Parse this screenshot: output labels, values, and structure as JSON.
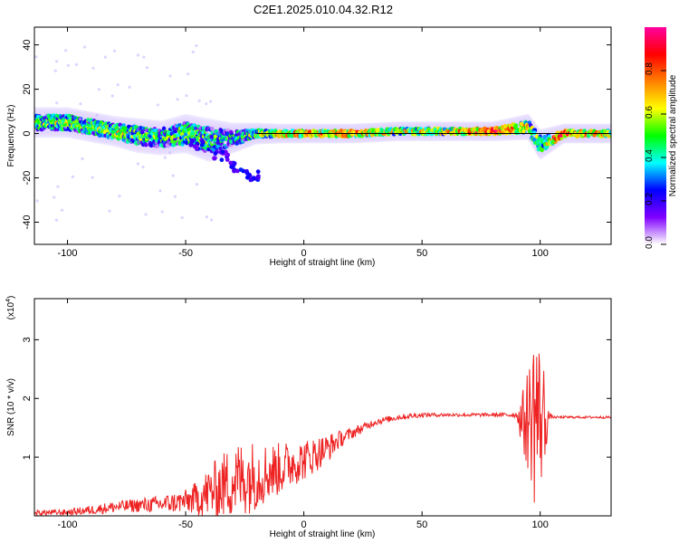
{
  "title": "C2E1.2025.010.04.32.R12",
  "chart_data": [
    {
      "type": "heatmap",
      "xlabel": "Height of straight line (km)",
      "ylabel": "Frequency (Hz)",
      "xlim": [
        -114,
        130
      ],
      "ylim": [
        -50,
        48
      ],
      "xticks": [
        -100,
        -50,
        0,
        50,
        100
      ],
      "yticks": [
        40,
        20,
        0,
        -20,
        -40
      ],
      "colorbar": {
        "label": "Normalized spectral amplitude",
        "range": [
          0,
          1
        ],
        "ticks": [
          "0.0",
          "0.2",
          "0.4",
          "0.6",
          "0.8"
        ],
        "tick_values": [
          0,
          0.2,
          0.4,
          0.6,
          0.8
        ],
        "colors": [
          "#ffffff",
          "#8000ff",
          "#0000ff",
          "#00ffff",
          "#00ff00",
          "#ffff00",
          "#ff8000",
          "#ff0000",
          "#ff00a0"
        ]
      },
      "trend": [
        {
          "x": -110,
          "f": 5,
          "spread": 4,
          "amp": 0.5
        },
        {
          "x": -100,
          "f": 5,
          "spread": 4,
          "amp": 0.55
        },
        {
          "x": -90,
          "f": 3,
          "spread": 4,
          "amp": 0.5
        },
        {
          "x": -80,
          "f": 1,
          "spread": 4,
          "amp": 0.55
        },
        {
          "x": -70,
          "f": -1,
          "spread": 5,
          "amp": 0.5
        },
        {
          "x": -60,
          "f": -2,
          "spread": 5,
          "amp": 0.45
        },
        {
          "x": -50,
          "f": 0,
          "spread": 6,
          "amp": 0.5
        },
        {
          "x": -40,
          "f": -3,
          "spread": 7,
          "amp": 0.45
        },
        {
          "x": -30,
          "f": -2,
          "spread": 4,
          "amp": 0.4
        },
        {
          "x": -20,
          "f": 0,
          "spread": 2,
          "amp": 0.5
        },
        {
          "x": -10,
          "f": 0,
          "spread": 1.5,
          "amp": 0.7
        },
        {
          "x": 0,
          "f": 0,
          "spread": 1.5,
          "amp": 0.75
        },
        {
          "x": 20,
          "f": 0,
          "spread": 1.5,
          "amp": 0.75
        },
        {
          "x": 40,
          "f": 1,
          "spread": 1.5,
          "amp": 0.6
        },
        {
          "x": 60,
          "f": 1,
          "spread": 1.5,
          "amp": 0.6
        },
        {
          "x": 80,
          "f": 1,
          "spread": 1.5,
          "amp": 0.9
        },
        {
          "x": 95,
          "f": 3,
          "spread": 3,
          "amp": 0.6
        },
        {
          "x": 100,
          "f": -5,
          "spread": 4,
          "amp": 0.5
        },
        {
          "x": 110,
          "f": 0,
          "spread": 1.5,
          "amp": 0.85
        },
        {
          "x": 130,
          "f": 0,
          "spread": 1.5,
          "amp": 0.6
        }
      ],
      "branch": [
        {
          "x": -45,
          "f": -5
        },
        {
          "x": -35,
          "f": -10
        },
        {
          "x": -28,
          "f": -15
        },
        {
          "x": -22,
          "f": -19
        }
      ]
    },
    {
      "type": "line",
      "xlabel": "Height of straight line (km)",
      "ylabel": "SNR (10 * v/v)",
      "yscale_label": "(x10",
      "yscale_exp": "4",
      "xlim": [
        -114,
        130
      ],
      "ylim": [
        0,
        3.7
      ],
      "xticks": [
        -100,
        -50,
        0,
        50,
        100
      ],
      "yticks": [
        1,
        2,
        3
      ],
      "color": "#ee2222",
      "series": [
        {
          "x": [
            -114,
            -100,
            -90,
            -80,
            -70,
            -60,
            -50,
            -45,
            -40,
            -35,
            -30,
            -25,
            -20,
            -15,
            -10,
            -5,
            0,
            5,
            10,
            15,
            20,
            25,
            30,
            40,
            50,
            60,
            70,
            80,
            90,
            93,
            96,
            98,
            100,
            101,
            102,
            103,
            104,
            106,
            110,
            120,
            130
          ],
          "mean": [
            0.05,
            0.06,
            0.1,
            0.15,
            0.18,
            0.2,
            0.25,
            0.3,
            0.4,
            0.5,
            0.6,
            0.65,
            0.7,
            0.75,
            0.8,
            0.9,
            0.95,
            1.05,
            1.15,
            1.3,
            1.4,
            1.5,
            1.6,
            1.68,
            1.72,
            1.72,
            1.72,
            1.72,
            1.72,
            1.6,
            1.7,
            1.8,
            1.65,
            1.7,
            1.6,
            1.65,
            1.7,
            1.68,
            1.68,
            1.68,
            1.68
          ],
          "noise": [
            0.05,
            0.05,
            0.08,
            0.1,
            0.12,
            0.15,
            0.2,
            0.3,
            0.45,
            0.55,
            0.65,
            0.65,
            0.6,
            0.5,
            0.45,
            0.4,
            0.35,
            0.3,
            0.25,
            0.15,
            0.1,
            0.08,
            0.06,
            0.05,
            0.04,
            0.03,
            0.03,
            0.03,
            0.05,
            0.6,
            1.1,
            1.8,
            1.2,
            1.2,
            0.8,
            0.3,
            0.05,
            0.02,
            0.02,
            0.02,
            0.02
          ]
        }
      ]
    }
  ]
}
